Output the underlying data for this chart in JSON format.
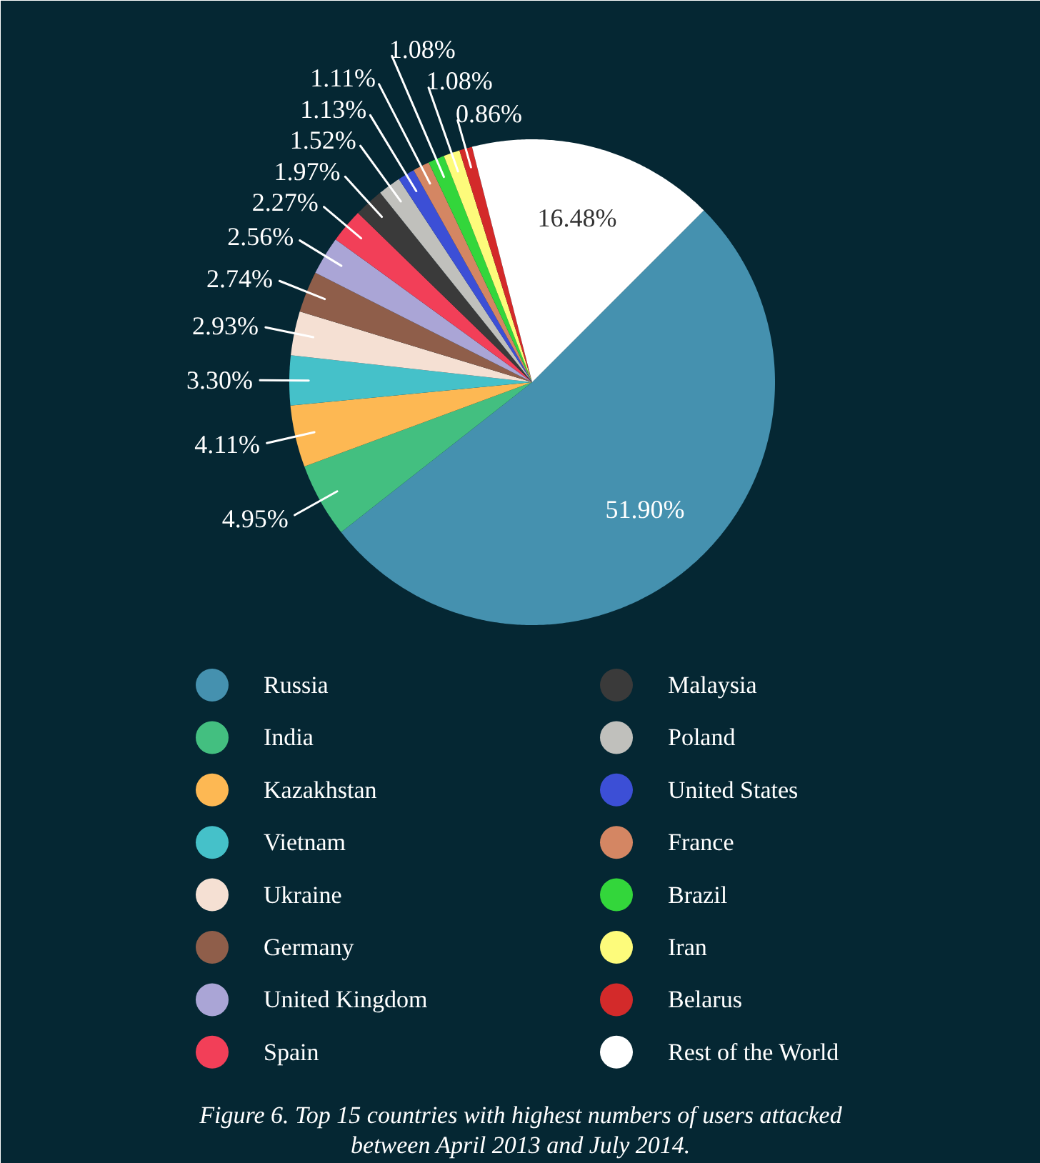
{
  "chart_data": {
    "type": "pie",
    "categories": [
      "Russia",
      "India",
      "Kazakhstan",
      "Vietnam",
      "Ukraine",
      "Germany",
      "United Kingdom",
      "Spain",
      "Malaysia",
      "Poland",
      "United States",
      "France",
      "Brazil",
      "Iran",
      "Belarus",
      "Rest of the World"
    ],
    "values": [
      51.9,
      4.95,
      4.11,
      3.3,
      2.93,
      2.74,
      2.56,
      2.27,
      1.97,
      1.52,
      1.13,
      1.11,
      1.08,
      1.08,
      0.86,
      16.48
    ],
    "value_labels": [
      "51.90%",
      "4.95%",
      "4.11%",
      "3.30%",
      "2.93%",
      "2.74%",
      "2.56%",
      "2.27%",
      "1.97%",
      "1.52%",
      "1.13%",
      "1.11%",
      "1.08%",
      "1.08%",
      "0.86%",
      "16.48%"
    ],
    "colors": [
      "#4591af",
      "#43bf80",
      "#fdb853",
      "#45c1c9",
      "#f5e0d3",
      "#8f5e4a",
      "#aaa5d6",
      "#f23f58",
      "#3a3a3a",
      "#c0c0bc",
      "#3c4fd6",
      "#d48663",
      "#33d63b",
      "#fdfb7b",
      "#d32a2a",
      "#ffffff"
    ],
    "legend": "bottom",
    "annotations": [
      "Figure 6. Top 15 countries with highest numbers of users attacked between April 2013 and July 2014."
    ]
  }
}
